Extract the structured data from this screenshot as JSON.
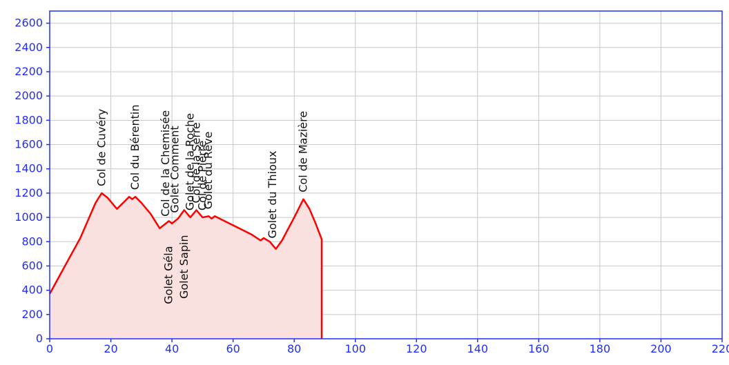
{
  "chart_data": {
    "type": "area",
    "xlim": [
      0,
      220
    ],
    "ylim": [
      0,
      2700
    ],
    "x_ticks": [
      0,
      20,
      40,
      60,
      80,
      100,
      120,
      140,
      160,
      180,
      200,
      220
    ],
    "y_ticks": [
      0,
      200,
      400,
      600,
      800,
      1000,
      1200,
      1400,
      1600,
      1800,
      2000,
      2200,
      2400,
      2600
    ],
    "grid": true,
    "colors": {
      "axis": "#1f2dff",
      "tick_text": "#1f2dff",
      "grid": "#c8c8c8",
      "line": "#ff0000",
      "fill": "#fbe0e0",
      "label_text": "#111111"
    },
    "profile": [
      [
        0,
        370
      ],
      [
        5,
        600
      ],
      [
        10,
        830
      ],
      [
        15,
        1120
      ],
      [
        17,
        1200
      ],
      [
        19,
        1160
      ],
      [
        22,
        1070
      ],
      [
        24,
        1120
      ],
      [
        26,
        1170
      ],
      [
        27,
        1150
      ],
      [
        28,
        1170
      ],
      [
        30,
        1120
      ],
      [
        33,
        1030
      ],
      [
        36,
        910
      ],
      [
        38,
        950
      ],
      [
        39,
        970
      ],
      [
        40,
        950
      ],
      [
        42,
        990
      ],
      [
        44,
        1060
      ],
      [
        46,
        1000
      ],
      [
        48,
        1060
      ],
      [
        50,
        1000
      ],
      [
        52,
        1010
      ],
      [
        53,
        990
      ],
      [
        54,
        1010
      ],
      [
        58,
        960
      ],
      [
        62,
        910
      ],
      [
        66,
        860
      ],
      [
        69,
        810
      ],
      [
        70,
        830
      ],
      [
        72,
        800
      ],
      [
        74,
        740
      ],
      [
        76,
        810
      ],
      [
        80,
        1000
      ],
      [
        83,
        1150
      ],
      [
        85,
        1070
      ],
      [
        87,
        950
      ],
      [
        89,
        820
      ],
      [
        89,
        0
      ]
    ],
    "labels": [
      {
        "text": "Col de Cuvéry",
        "x": 17,
        "y": 1200,
        "position": "above"
      },
      {
        "text": "Col du Bérentin",
        "x": 28,
        "y": 1170,
        "position": "above"
      },
      {
        "text": "Col de la Chemisée",
        "x": 38,
        "y": 950,
        "position": "above"
      },
      {
        "text": "Golet Comment",
        "x": 41,
        "y": 980,
        "position": "above"
      },
      {
        "text": "Golet de la Roche",
        "x": 46,
        "y": 1000,
        "position": "above"
      },
      {
        "text": "Col de la Serre",
        "x": 48,
        "y": 1060,
        "position": "above"
      },
      {
        "text": "Col de Pierre",
        "x": 50,
        "y": 1000,
        "position": "above"
      },
      {
        "text": "Golet du Rêve",
        "x": 52,
        "y": 1010,
        "position": "above"
      },
      {
        "text": "Golet du Thioux",
        "x": 73,
        "y": 770,
        "position": "above"
      },
      {
        "text": "Col de Mazière",
        "x": 83,
        "y": 1150,
        "position": "above"
      },
      {
        "text": "Golet Géla",
        "x": 39,
        "y": 970,
        "position": "below"
      },
      {
        "text": "Golet Sapin",
        "x": 44,
        "y": 1060,
        "position": "below"
      }
    ]
  }
}
